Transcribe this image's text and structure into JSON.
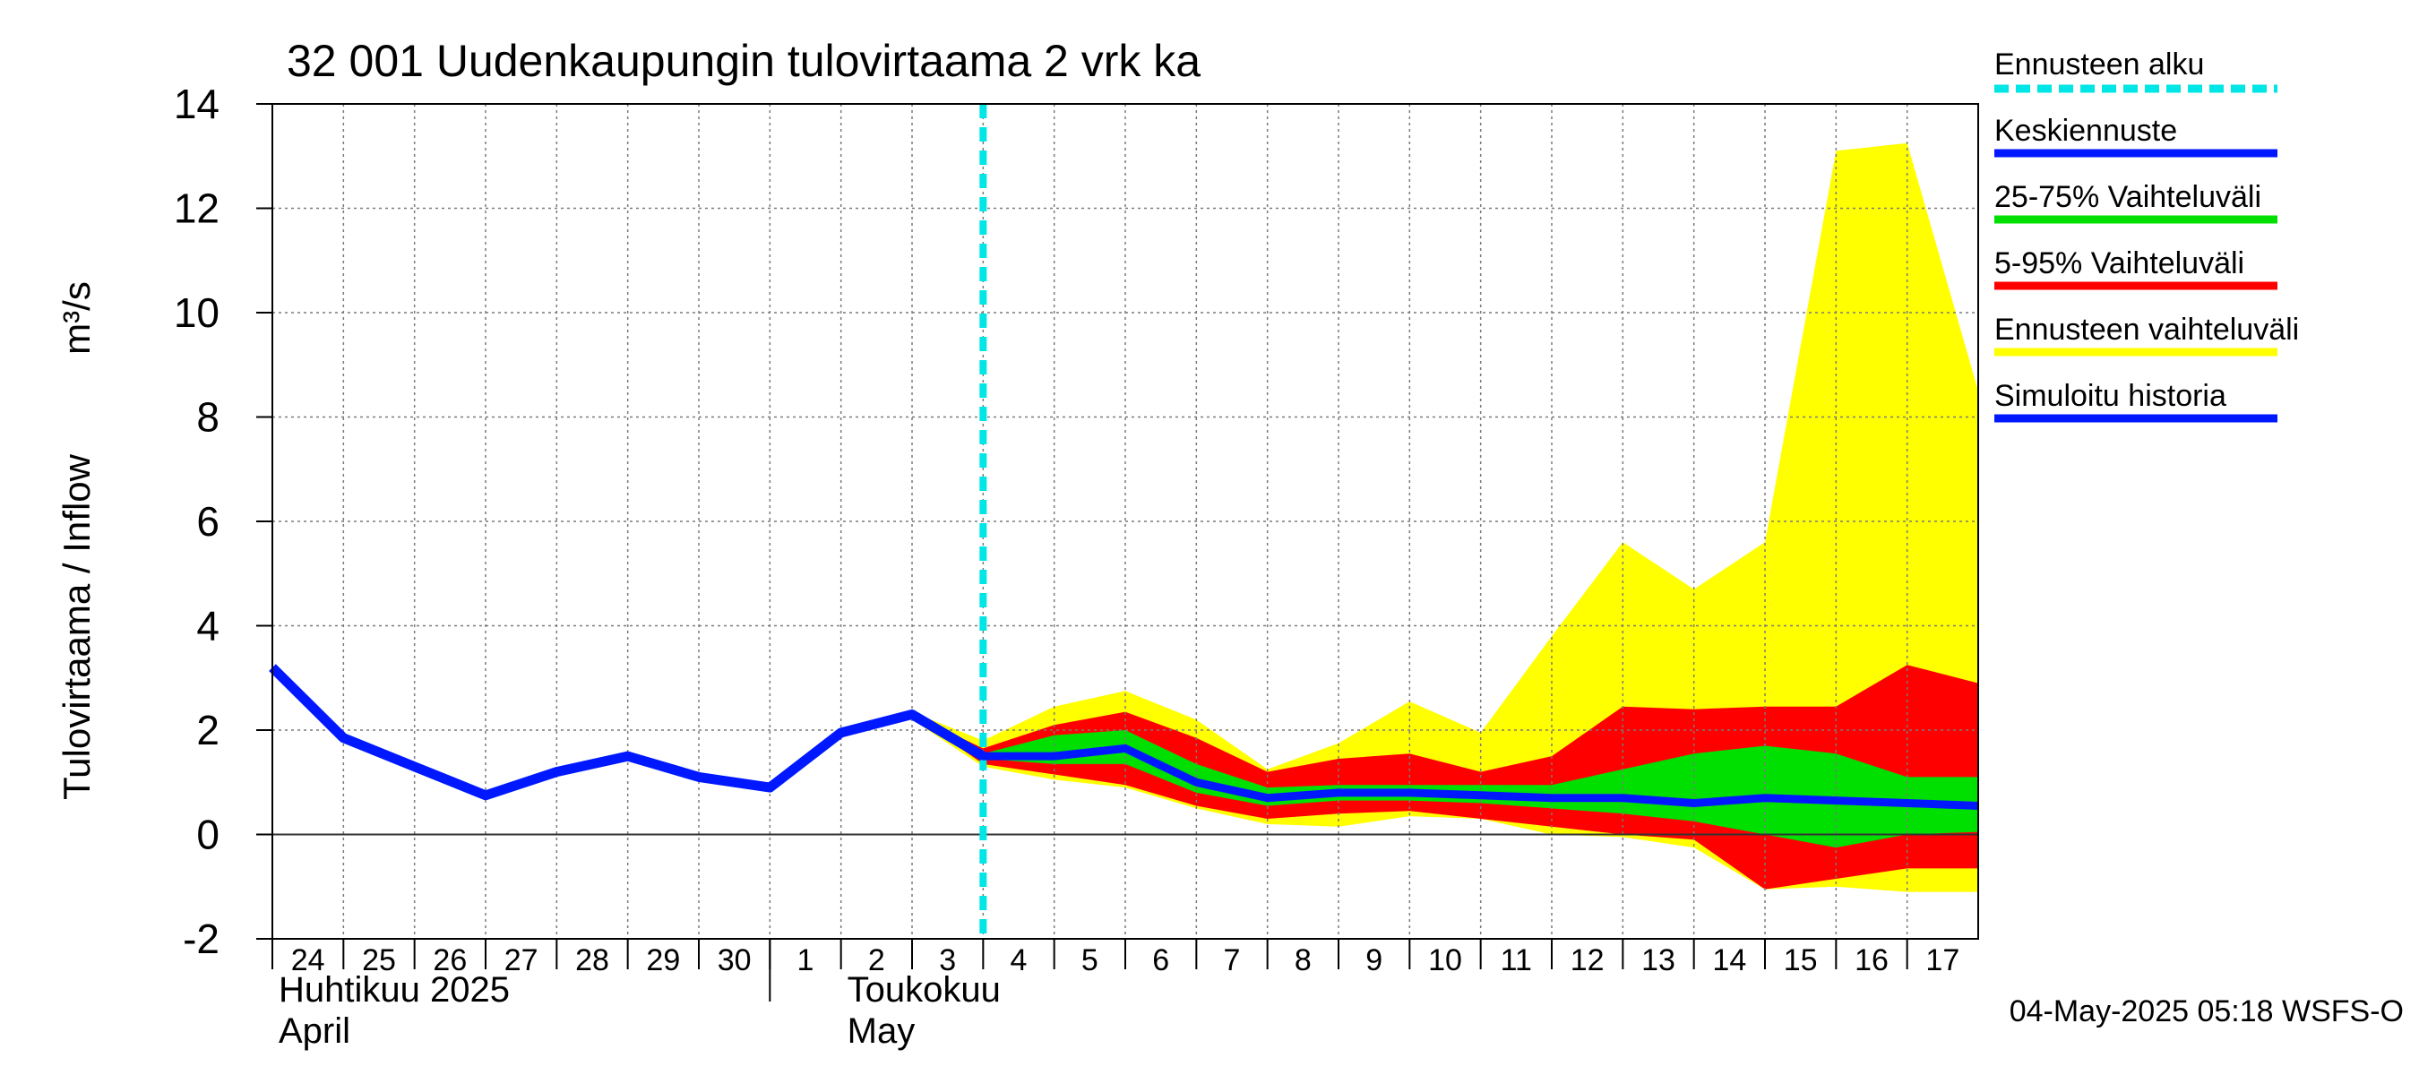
{
  "chart_data": {
    "type": "area",
    "title": "32 001 Uudenkaupungin tulovirtaama 2 vrk ka",
    "ylabel": "Tulovirtaama / Inflow",
    "yunit": "m³/s",
    "ylim": [
      -2,
      14
    ],
    "yticks": [
      -2,
      0,
      2,
      4,
      6,
      8,
      10,
      12,
      14
    ],
    "xlim": [
      0,
      24
    ],
    "x_day_labels": [
      "24",
      "25",
      "26",
      "27",
      "28",
      "29",
      "30",
      "1",
      "2",
      "3",
      "4",
      "5",
      "6",
      "7",
      "8",
      "9",
      "10",
      "11",
      "12",
      "13",
      "14",
      "15",
      "16",
      "17"
    ],
    "month_labels": [
      {
        "fi": "Huhtikuu  2025",
        "en": "April",
        "x": 0
      },
      {
        "fi": "Toukokuu",
        "en": "May",
        "x": 8
      }
    ],
    "month_boundary_x": 7,
    "forecast_start_x": 10,
    "history": {
      "name": "Simuloitu historia",
      "x": [
        0,
        1,
        2,
        3,
        4,
        5,
        6,
        7,
        8,
        9,
        10
      ],
      "y": [
        3.2,
        1.85,
        1.3,
        0.75,
        1.2,
        1.5,
        1.1,
        0.9,
        1.95,
        2.3,
        1.5
      ]
    },
    "forecast_x": [
      9,
      10,
      11,
      12,
      13,
      14,
      15,
      16,
      17,
      18,
      19,
      20,
      21,
      22,
      23,
      24
    ],
    "median": {
      "name": "Keskiennuste",
      "y": [
        2.3,
        1.5,
        1.5,
        1.65,
        1.0,
        0.7,
        0.8,
        0.8,
        0.75,
        0.7,
        0.7,
        0.6,
        0.7,
        0.65,
        0.6,
        0.55
      ]
    },
    "band_25_75": {
      "name": "25-75% Vaihteluväli",
      "low": [
        2.3,
        1.45,
        1.35,
        1.35,
        0.8,
        0.55,
        0.65,
        0.65,
        0.6,
        0.5,
        0.4,
        0.25,
        0.0,
        -0.25,
        0.0,
        0.05
      ],
      "high": [
        2.3,
        1.55,
        1.9,
        2.0,
        1.35,
        0.9,
        0.95,
        0.95,
        0.95,
        0.95,
        1.25,
        1.55,
        1.7,
        1.55,
        1.1,
        1.1
      ]
    },
    "band_5_95": {
      "name": "5-95% Vaihteluväli",
      "low": [
        2.3,
        1.35,
        1.15,
        0.95,
        0.55,
        0.3,
        0.4,
        0.45,
        0.3,
        0.15,
        0.0,
        -0.1,
        -1.05,
        -0.85,
        -0.65,
        -0.65
      ],
      "high": [
        2.3,
        1.65,
        2.1,
        2.35,
        1.85,
        1.2,
        1.45,
        1.55,
        1.2,
        1.5,
        2.45,
        2.4,
        2.45,
        2.45,
        3.25,
        2.9
      ]
    },
    "band_ensemble": {
      "name": "Ennusteen vaihteluväli",
      "low": [
        2.2,
        1.3,
        1.05,
        0.9,
        0.5,
        0.2,
        0.15,
        0.35,
        0.3,
        0.0,
        -0.05,
        -0.25,
        -1.05,
        -1.0,
        -1.1,
        -1.1
      ],
      "high": [
        2.35,
        1.8,
        2.45,
        2.75,
        2.2,
        1.25,
        1.75,
        2.55,
        1.95,
        3.8,
        5.6,
        4.7,
        5.6,
        13.1,
        13.25,
        8.5
      ]
    },
    "legend": [
      {
        "label": "Ennusteen alku",
        "color": "#00e5e5",
        "style": "dashed"
      },
      {
        "label": "Keskiennuste",
        "color": "#0018ff",
        "style": "solid"
      },
      {
        "label": "25-75% Vaihteluväli",
        "color": "#00e000",
        "style": "solid"
      },
      {
        "label": "5-95% Vaihteluväli",
        "color": "#ff0000",
        "style": "solid"
      },
      {
        "label": "Ennusteen vaihteluväli",
        "color": "#ffff00",
        "style": "solid"
      },
      {
        "label": "Simuloitu historia",
        "color": "#0018ff",
        "style": "solid"
      }
    ],
    "footer": "04-May-2025 05:18 WSFS-O",
    "colors": {
      "ensemble": "#ffff00",
      "p5_95": "#ff0000",
      "p25_75": "#00e000",
      "median": "#0018ff",
      "forecast_start": "#00e5e5",
      "grid": "#7a7a7a"
    }
  }
}
